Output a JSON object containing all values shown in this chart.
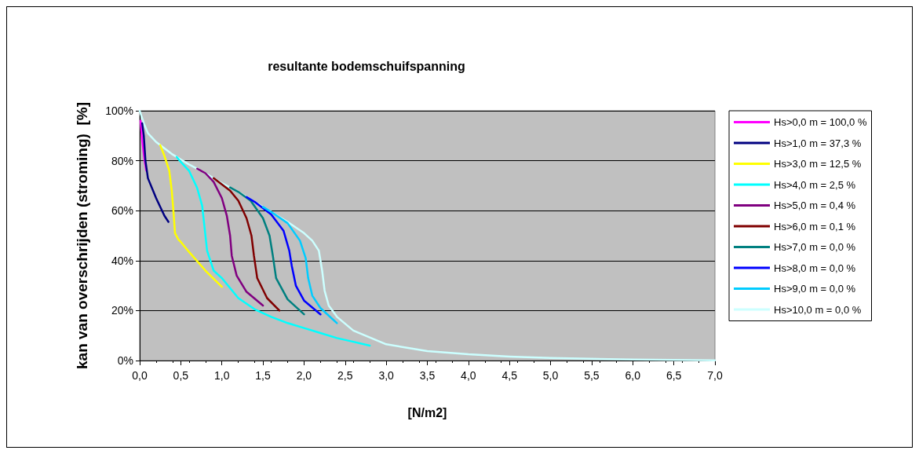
{
  "chart_data": {
    "type": "line",
    "title": "resultante bodemschuifspanning",
    "xlabel": "[N/m2]",
    "ylabel": "kan van overschrijden (stroming)  [%]",
    "xlim": [
      0,
      7
    ],
    "xticks": [
      {
        "value": 0,
        "label": "0,0"
      },
      {
        "value": 0.5,
        "label": "0,5"
      },
      {
        "value": 1,
        "label": "1,0"
      },
      {
        "value": 1.5,
        "label": "1,5"
      },
      {
        "value": 2,
        "label": "2,0"
      },
      {
        "value": 2.5,
        "label": "2,5"
      },
      {
        "value": 3,
        "label": "3,0"
      },
      {
        "value": 3.5,
        "label": "3,5"
      },
      {
        "value": 4,
        "label": "4,0"
      },
      {
        "value": 4.5,
        "label": "4,5"
      },
      {
        "value": 5,
        "label": "5,0"
      },
      {
        "value": 5.5,
        "label": "5,5"
      },
      {
        "value": 6,
        "label": "6,0"
      },
      {
        "value": 6.5,
        "label": "6,5"
      },
      {
        "value": 7,
        "label": "7,0"
      }
    ],
    "ylim": [
      0,
      100
    ],
    "yticks": [
      {
        "value": 0,
        "label": "0%"
      },
      {
        "value": 20,
        "label": "20%"
      },
      {
        "value": 40,
        "label": "40%"
      },
      {
        "value": 60,
        "label": "60%"
      },
      {
        "value": 80,
        "label": "80%"
      },
      {
        "value": 100,
        "label": "100%"
      }
    ],
    "grid": "y",
    "legend": "right",
    "marker": "none",
    "line_style": "solid",
    "series": [
      {
        "name": "Hs>0,0 m = 100,0 %",
        "color": "#ff00ff",
        "x": [
          0.01,
          0.03,
          0.06,
          0.08
        ],
        "values": [
          96,
          88,
          80,
          76
        ]
      },
      {
        "name": "Hs>1,0 m = 37,3 %",
        "color": "#000080",
        "x": [
          0.03,
          0.05,
          0.07,
          0.1,
          0.2,
          0.3,
          0.35
        ],
        "values": [
          95,
          90,
          80,
          73,
          65,
          58,
          55.5
        ]
      },
      {
        "name": "Hs>3,0 m = 12,5 %",
        "color": "#ffff00",
        "x": [
          0.25,
          0.3,
          0.36,
          0.39,
          0.41,
          0.43,
          0.47,
          0.5,
          0.6,
          0.8,
          1.0
        ],
        "values": [
          86.2,
          82,
          76,
          68,
          60,
          51,
          48.5,
          47.5,
          43.5,
          36,
          29.5
        ]
      },
      {
        "name": "Hs>4,0 m = 2,5 %",
        "color": "#00ffff",
        "x": [
          0.45,
          0.5,
          0.6,
          0.7,
          0.76,
          0.79,
          0.82,
          0.9,
          1.0,
          1.2,
          1.4,
          1.6,
          1.8,
          2.0,
          2.2,
          2.4,
          2.6,
          2.8
        ],
        "values": [
          81.5,
          79.5,
          76,
          69,
          62,
          53,
          44,
          36,
          33,
          25,
          20.5,
          17.5,
          15,
          13,
          11,
          9,
          7.5,
          6
        ]
      },
      {
        "name": "Hs>5,0 m = 0,4 %",
        "color": "#800080",
        "x": [
          0.7,
          0.8,
          0.9,
          1.0,
          1.06,
          1.1,
          1.12,
          1.18,
          1.3,
          1.5
        ],
        "values": [
          76.8,
          75,
          71.5,
          65,
          58,
          50,
          42,
          34,
          27.5,
          22
        ]
      },
      {
        "name": "Hs>6,0 m = 0,1 %",
        "color": "#800000",
        "x": [
          0.9,
          1.0,
          1.1,
          1.2,
          1.3,
          1.36,
          1.39,
          1.43,
          1.55,
          1.7
        ],
        "values": [
          73,
          70.5,
          68,
          64,
          57,
          50,
          42,
          33,
          25,
          20
        ]
      },
      {
        "name": "Hs>7,0 m = 0,0 %",
        "color": "#008080",
        "x": [
          1.1,
          1.2,
          1.35,
          1.5,
          1.58,
          1.62,
          1.66,
          1.8,
          2.0
        ],
        "values": [
          69.3,
          67.5,
          64,
          57,
          50,
          42,
          33,
          24.5,
          18.5
        ]
      },
      {
        "name": "Hs>8,0 m = 0,0 %",
        "color": "#0000ff",
        "x": [
          1.3,
          1.4,
          1.6,
          1.75,
          1.82,
          1.85,
          1.9,
          2.0,
          2.2
        ],
        "values": [
          65.5,
          63.5,
          58.5,
          52,
          44,
          38,
          30,
          24,
          18.5
        ]
      },
      {
        "name": "Hs>9,0 m = 0,0 %",
        "color": "#00ccff",
        "x": [
          1.5,
          1.6,
          1.8,
          1.95,
          2.02,
          2.05,
          2.1,
          2.2,
          2.4
        ],
        "values": [
          61.5,
          59.5,
          55,
          48,
          41,
          33,
          26,
          21,
          15
        ]
      },
      {
        "name": "Hs>10,0 m = 0,0 %",
        "color": "#ccffff",
        "x": [
          0,
          0.05,
          0.1,
          0.2,
          0.3,
          0.4,
          0.5,
          0.6,
          0.8,
          1.0,
          1.2,
          1.4,
          1.6,
          1.8,
          2.0,
          2.1,
          2.18,
          2.22,
          2.25,
          2.3,
          2.4,
          2.6,
          3.0,
          3.5,
          4.0,
          4.5,
          5.0,
          6.0,
          7.0
        ],
        "values": [
          100,
          95,
          91,
          87.5,
          85,
          82.5,
          80.5,
          78.5,
          75,
          71,
          67.5,
          63.5,
          59.5,
          55.5,
          51,
          48,
          44,
          36,
          28,
          22,
          17.5,
          12,
          6.5,
          3.8,
          2.5,
          1.6,
          1.0,
          0.4,
          0.1
        ]
      }
    ]
  }
}
